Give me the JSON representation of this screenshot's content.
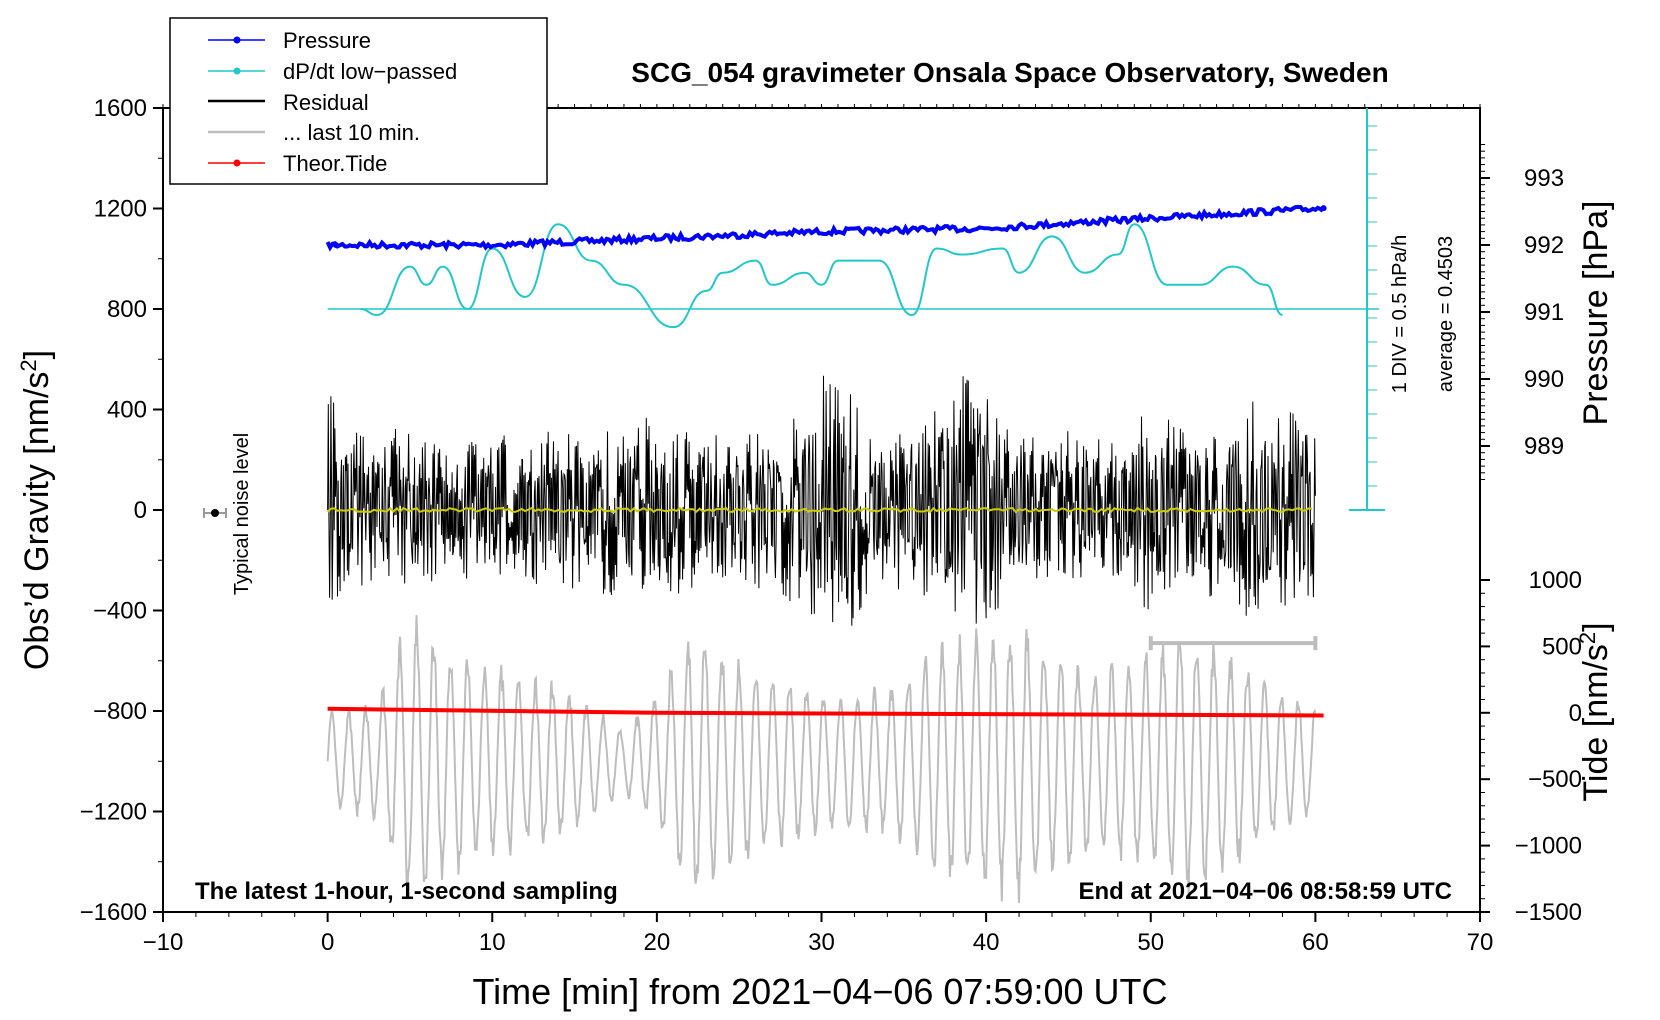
{
  "colors": {
    "pressure": "#0000ff",
    "dpdt": "#22c7c7",
    "residual": "#000000",
    "last10": "#bdbdbd",
    "tide": "#ff0000",
    "residual_smooth": "#cccc00"
  },
  "chart_data": {
    "type": "line",
    "title": "SCG_054 gravimeter Onsala Space Observatory, Sweden",
    "xlabel": "Time [min] from 2021−04−06 07:59:00 UTC",
    "ylabel_left_main": "Obs’d Gravity [nm/s",
    "ylabel_left_sup": "2",
    "ylabel_left_close": "]",
    "ylabel_right_pressure": "Pressure [hPa]",
    "ylabel_right_tide_main": "Tide [nm/s",
    "ylabel_right_tide_sup": "2",
    "ylabel_right_tide_close": "]",
    "xlim": [
      -10,
      70
    ],
    "ylim_left": [
      -1600,
      1600
    ],
    "x_ticks": [
      "−10",
      "0",
      "10",
      "20",
      "30",
      "40",
      "50",
      "60",
      "70"
    ],
    "y_left_ticks": [
      "1600",
      "1200",
      "800",
      "400",
      "0",
      "−400",
      "−800",
      "−1200",
      "−1600"
    ],
    "pressure_ticks": [
      "993",
      "992",
      "991",
      "990",
      "989"
    ],
    "tide_ticks": [
      "1000",
      "500",
      "0",
      "−500",
      "−1000",
      "−1500"
    ],
    "legend": [
      {
        "label": "Pressure",
        "series": "pressure"
      },
      {
        "label": "dP/dt low−passed",
        "series": "dpdt"
      },
      {
        "label": "Residual",
        "series": "residual"
      },
      {
        "label": "... last 10 min.",
        "series": "last10"
      },
      {
        "label": "Theor.Tide",
        "series": "tide"
      }
    ],
    "legend_position": "top-left",
    "annotations": {
      "noise": "Typical noise level",
      "div": "1 DIV = 0.5 hPa/h",
      "average": "average = 0.4503",
      "bottom_left": "The latest 1-hour, 1-second sampling",
      "bottom_right": "End at 2021−04−06 08:58:59 UTC"
    },
    "series": [
      {
        "name": "Pressure",
        "unit": "hPa",
        "x": [
          0,
          10,
          20,
          30,
          40,
          50,
          60.5
        ],
        "values": [
          992.0,
          992.0,
          992.1,
          992.2,
          992.25,
          992.4,
          992.55
        ]
      },
      {
        "name": "dP/dt low-passed",
        "unit": "hPa/h",
        "baseline": 0,
        "x": [
          2,
          3,
          5,
          6,
          7,
          8.5,
          10,
          12,
          14,
          16,
          18,
          21,
          23,
          24,
          26,
          27,
          29,
          30,
          31,
          33.5,
          35.5,
          37,
          38.5,
          41,
          42,
          44,
          46,
          48,
          49,
          51,
          53,
          55,
          57,
          58
        ],
        "values": [
          0.0,
          -0.05,
          0.35,
          0.2,
          0.35,
          0.0,
          0.5,
          0.1,
          0.7,
          0.4,
          0.2,
          -0.15,
          0.15,
          0.3,
          0.4,
          0.2,
          0.3,
          0.2,
          0.4,
          0.4,
          -0.05,
          0.5,
          0.45,
          0.5,
          0.3,
          0.6,
          0.3,
          0.45,
          0.7,
          0.2,
          0.2,
          0.35,
          0.2,
          -0.05
        ]
      },
      {
        "name": "Residual",
        "unit": "nm/s^2",
        "x": [
          0,
          60
        ],
        "envelope_max": 660,
        "envelope_min": -620
      },
      {
        "name": "... last 10 min.",
        "unit": "nm/s^2 (offset)",
        "x_range": [
          50,
          60
        ]
      },
      {
        "name": "Theor.Tide",
        "unit": "nm/s^2",
        "x": [
          0,
          20,
          40,
          60.5
        ],
        "values": [
          30,
          0,
          -10,
          -20
        ]
      }
    ]
  }
}
